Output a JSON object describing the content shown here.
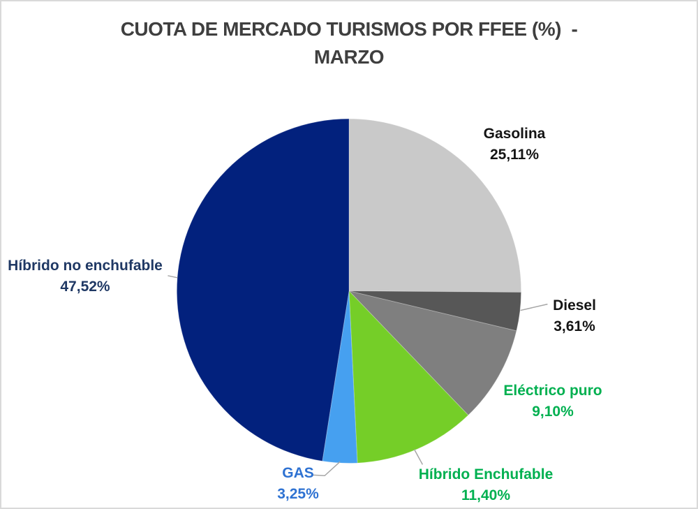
{
  "title": {
    "line1": "CUOTA DE MERCADO TURISMOS POR FFEE (%)  -",
    "line2": "MARZO",
    "color": "#3F3F3F"
  },
  "chart_data": {
    "type": "pie",
    "title": "CUOTA DE MERCADO TURISMOS POR FFEE (%) - MARZO",
    "unit": "%",
    "start_angle_deg": 0,
    "direction": "clockwise",
    "legend_position": "none",
    "labels_style": "category name + percentage, outside slices",
    "segments": [
      {
        "id": "gasolina",
        "label": "Gasolina",
        "value": 25.11,
        "display": "25,11%",
        "slice_color": "#C9C9C9",
        "label_color": "#141414"
      },
      {
        "id": "diesel",
        "label": "Diesel",
        "value": 3.61,
        "display": "3,61%",
        "slice_color": "#575757",
        "label_color": "#141414"
      },
      {
        "id": "electrico-puro",
        "label": "Eléctrico puro",
        "value": 9.1,
        "display": "9,10%",
        "slice_color": "#7F7F7F",
        "label_color": "#00B050"
      },
      {
        "id": "hibrido-enchufable",
        "label": "Híbrido Enchufable",
        "value": 11.4,
        "display": "11,40%",
        "slice_color": "#75CE28",
        "label_color": "#00B050"
      },
      {
        "id": "gas",
        "label": "GAS",
        "value": 3.25,
        "display": "3,25%",
        "slice_color": "#46A0F0",
        "label_color": "#2E72D2"
      },
      {
        "id": "hibrido-no-enchufable",
        "label": "Híbrido no enchufable",
        "value": 47.52,
        "display": "47,52%",
        "slice_color": "#02217D",
        "label_color": "#1F3864"
      }
    ]
  }
}
